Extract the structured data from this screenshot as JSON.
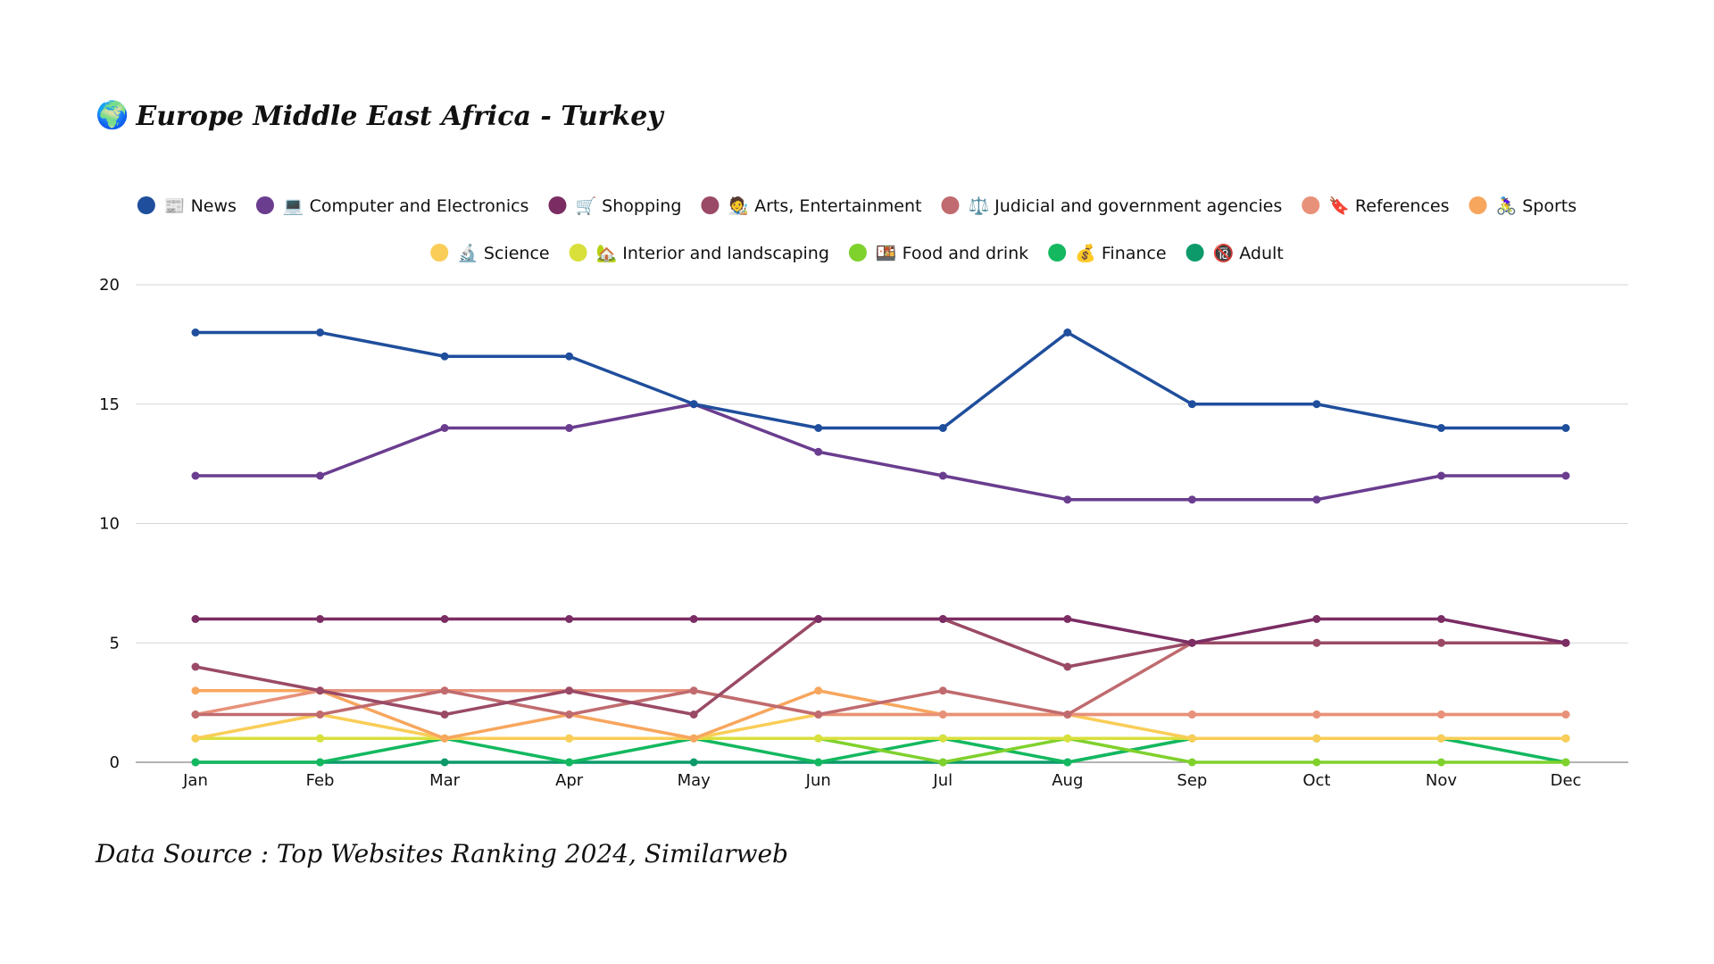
{
  "header": {
    "icon": "globe-emoji",
    "icon_glyph": "🌍",
    "title": "Europe Middle East Africa - Turkey"
  },
  "footer": {
    "source": "Data Source : Top Websites Ranking 2024, Similarweb"
  },
  "chart_data": {
    "type": "line",
    "title": "Europe Middle East Africa - Turkey",
    "xlabel": "",
    "ylabel": "",
    "ylim": [
      0,
      20
    ],
    "yticks": [
      0,
      5,
      10,
      15,
      20
    ],
    "grid": true,
    "legend_position": "top",
    "categories": [
      "Jan",
      "Feb",
      "Mar",
      "Apr",
      "May",
      "Jun",
      "Jul",
      "Aug",
      "Sep",
      "Oct",
      "Nov",
      "Dec"
    ],
    "series": [
      {
        "name": "News",
        "emoji": "📰",
        "color": "#1f4e9c",
        "values": [
          18,
          18,
          17,
          17,
          15,
          14,
          14,
          18,
          15,
          15,
          14,
          14
        ]
      },
      {
        "name": "Computer and Electronics",
        "emoji": "💻",
        "color": "#6a3d8f",
        "values": [
          12,
          12,
          14,
          14,
          15,
          13,
          12,
          11,
          11,
          11,
          12,
          12
        ]
      },
      {
        "name": "Shopping",
        "emoji": "🛒",
        "color": "#7b2d63",
        "values": [
          6,
          6,
          6,
          6,
          6,
          6,
          6,
          6,
          5,
          6,
          6,
          5
        ]
      },
      {
        "name": "Arts, Entertainment",
        "emoji": "🧑‍🎨",
        "color": "#9a4a66",
        "values": [
          4,
          3,
          2,
          3,
          2,
          6,
          6,
          4,
          5,
          5,
          5,
          5
        ]
      },
      {
        "name": "Judicial and government agencies",
        "emoji": "⚖️",
        "color": "#c06b6f",
        "values": [
          2,
          2,
          3,
          2,
          3,
          2,
          3,
          2,
          5,
          5,
          5,
          5
        ]
      },
      {
        "name": "References",
        "emoji": "🔖",
        "color": "#e8917a",
        "values": [
          2,
          3,
          3,
          3,
          3,
          2,
          2,
          2,
          2,
          2,
          2,
          2
        ]
      },
      {
        "name": "Sports",
        "emoji": "🚴‍♀️",
        "color": "#f7a65e",
        "values": [
          3,
          3,
          1,
          2,
          1,
          3,
          2,
          2,
          2,
          2,
          2,
          2
        ]
      },
      {
        "name": "Science",
        "emoji": "🔬",
        "color": "#f9cd57",
        "values": [
          1,
          2,
          1,
          1,
          1,
          2,
          2,
          2,
          1,
          1,
          1,
          1
        ]
      },
      {
        "name": "Interior and landscaping",
        "emoji": "🏡",
        "color": "#d9e03c",
        "values": [
          1,
          1,
          1,
          1,
          1,
          1,
          1,
          1,
          1,
          1,
          1,
          1
        ]
      },
      {
        "name": "Food and drink",
        "emoji": "🍱",
        "color": "#7fd12c",
        "values": [
          1,
          1,
          1,
          1,
          1,
          1,
          0,
          1,
          0,
          0,
          0,
          0
        ]
      },
      {
        "name": "Finance",
        "emoji": "💰",
        "color": "#13b85f",
        "values": [
          0,
          0,
          1,
          0,
          1,
          0,
          1,
          0,
          1,
          1,
          1,
          0
        ]
      },
      {
        "name": "Adult",
        "emoji": "🔞",
        "color": "#0c9a6a",
        "values": [
          0,
          0,
          0,
          0,
          0,
          0,
          0,
          0,
          1,
          1,
          1,
          1
        ]
      }
    ]
  }
}
